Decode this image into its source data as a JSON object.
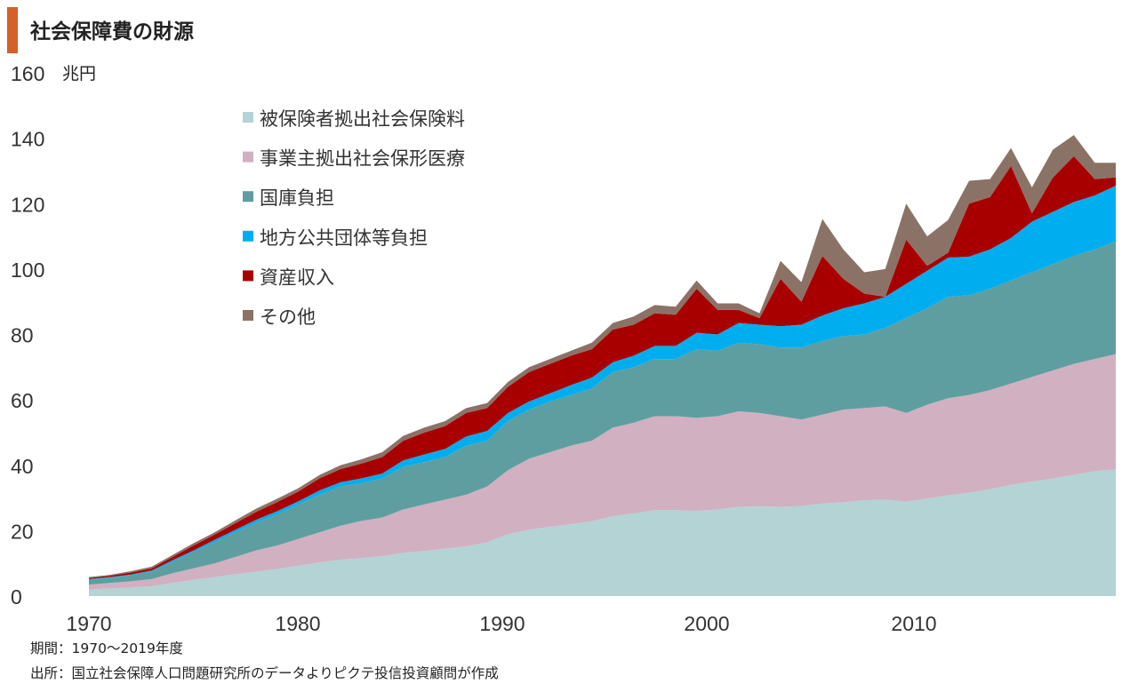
{
  "title": "社会保障費の財源",
  "footer": {
    "period": "期間：1970～2019年度",
    "source": "出所：国立社会保障人口問題研究所のデータよりピクテ投信投資顧問が作成"
  },
  "chart_data": {
    "type": "area",
    "stacked": true,
    "title": "社会保障費の財源",
    "ylabel": "兆円",
    "xlabel": "",
    "ylim": [
      0,
      160
    ],
    "xlim": [
      1970,
      2019
    ],
    "y_ticks": [
      "0",
      "20",
      "40",
      "60",
      "80",
      "100",
      "120",
      "140",
      "160"
    ],
    "x_ticks": [
      "1970",
      "1980",
      "1990",
      "2000",
      "2010"
    ],
    "grid": false,
    "legend_position": "top-left",
    "x": [
      1970,
      1971,
      1972,
      1973,
      1974,
      1975,
      1976,
      1977,
      1978,
      1979,
      1980,
      1981,
      1982,
      1983,
      1984,
      1985,
      1986,
      1987,
      1988,
      1989,
      1990,
      1991,
      1992,
      1993,
      1994,
      1995,
      1996,
      1997,
      1998,
      1999,
      2000,
      2001,
      2002,
      2003,
      2004,
      2005,
      2006,
      2007,
      2008,
      2009,
      2010,
      2011,
      2012,
      2013,
      2014,
      2015,
      2016,
      2017,
      2018,
      2019
    ],
    "series": [
      {
        "name": "被保険者拠出社会保険料",
        "color": "#b3d3d5",
        "values": [
          2,
          2.3,
          2.6,
          3,
          4,
          5,
          5.8,
          6.7,
          7.5,
          8.3,
          9.3,
          10.3,
          11.1,
          11.6,
          12.2,
          13.2,
          13.8,
          14.5,
          15.2,
          16.4,
          18.9,
          20.3,
          21.2,
          22,
          22.9,
          24.4,
          25.3,
          26.3,
          26.3,
          26,
          26.5,
          27.3,
          27.4,
          27.3,
          27.5,
          28.3,
          28.7,
          29.3,
          29.5,
          28.9,
          29.8,
          30.8,
          31.6,
          32.7,
          34,
          35,
          36,
          37.1,
          38.2,
          38.7
        ]
      },
      {
        "name": "事業主拠出社会保形医療",
        "color": "#d1b0c1",
        "values": [
          1.5,
          1.7,
          1.9,
          2.2,
          3,
          3.5,
          4.2,
          5.3,
          6.5,
          7.2,
          8.2,
          9.2,
          10.4,
          11.4,
          11.8,
          13.3,
          14.2,
          15,
          15.8,
          17.1,
          19.6,
          21.7,
          22.8,
          24,
          24.6,
          27.1,
          27.7,
          28.7,
          28.7,
          28.5,
          28.5,
          29.2,
          28.6,
          27.7,
          26.5,
          27.2,
          28.3,
          28.2,
          28.5,
          27.1,
          28.7,
          29.7,
          29.9,
          30.3,
          31,
          32,
          33,
          33.9,
          34.3,
          35.3
        ]
      },
      {
        "name": "国庫負担",
        "color": "#5f9ea0",
        "values": [
          1.5,
          1.6,
          1.9,
          2.3,
          3.5,
          5,
          6.5,
          7.5,
          8.5,
          9.5,
          10.5,
          11.5,
          12,
          11.5,
          12,
          13,
          13,
          13,
          15,
          14,
          15,
          15,
          15.5,
          15.5,
          16,
          17,
          17,
          17.5,
          17.5,
          21,
          20,
          21,
          21,
          21,
          22,
          22.5,
          22.5,
          22.5,
          24,
          29,
          29.5,
          31,
          30.5,
          31,
          31.5,
          32,
          32.5,
          33,
          33.5,
          34.5
        ]
      },
      {
        "name": "地方公共団体等負担",
        "color": "#00aeef",
        "values": [
          0.2,
          0.2,
          0.2,
          0.3,
          0.5,
          0.5,
          0.7,
          0.8,
          0.9,
          1,
          1,
          1.3,
          1.3,
          1.5,
          1.5,
          2,
          2.3,
          2.5,
          2.8,
          3,
          2.5,
          2.5,
          2.5,
          3,
          3.3,
          3,
          3.5,
          4,
          4,
          5,
          5,
          6,
          6,
          6.5,
          7,
          7.8,
          8.5,
          9.5,
          9.5,
          10.5,
          11.5,
          12,
          11.8,
          12,
          13,
          15.5,
          16,
          16.5,
          16.5,
          17
        ]
      },
      {
        "name": "資産収入",
        "color": "#a80000",
        "values": [
          0.3,
          0.4,
          0.6,
          0.7,
          1,
          1.5,
          1.6,
          2,
          2.4,
          2.8,
          3,
          3.7,
          4,
          4.5,
          5,
          6,
          6.7,
          7,
          7.2,
          7,
          8,
          9,
          9,
          9,
          8.7,
          10,
          9.5,
          10,
          9.5,
          13.5,
          7.5,
          4,
          2,
          14.5,
          7,
          18.2,
          9,
          3,
          0,
          13.5,
          1.5,
          1.5,
          16.2,
          16,
          22,
          2.5,
          10.5,
          14,
          5,
          2.5
        ]
      },
      {
        "name": "その他",
        "color": "#8b7267",
        "values": [
          0.3,
          0.3,
          0.4,
          0.5,
          0.6,
          0.7,
          0.7,
          0.9,
          1,
          1,
          1,
          1,
          1.2,
          1.3,
          1.5,
          1.5,
          1.5,
          1.5,
          1.5,
          1.5,
          1.5,
          1.5,
          1.5,
          1.5,
          2,
          2,
          2.5,
          2.5,
          2.5,
          2.5,
          2,
          2,
          1.5,
          5.5,
          6,
          11.3,
          9,
          6.5,
          8.5,
          11,
          9,
          10,
          7,
          5.5,
          5.5,
          8,
          8.5,
          6.5,
          5,
          4.5
        ]
      }
    ]
  }
}
